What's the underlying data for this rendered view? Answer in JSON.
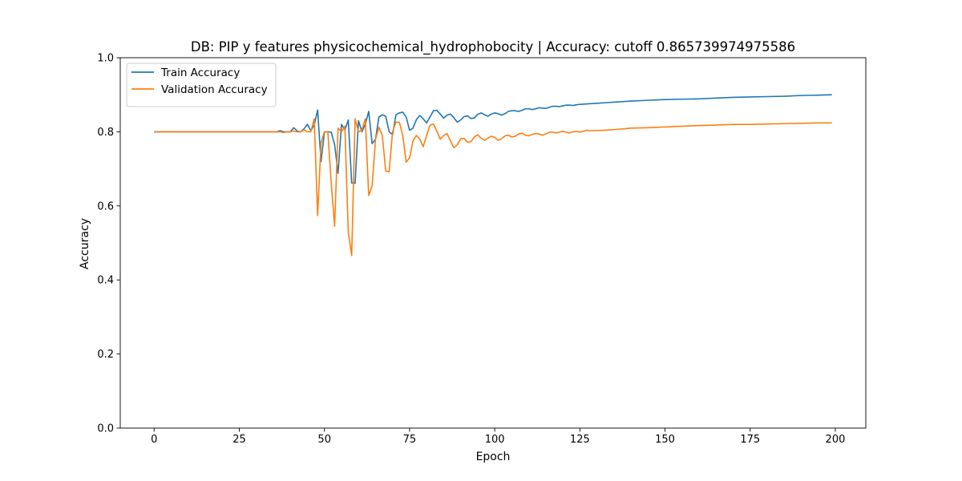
{
  "chart_data": {
    "type": "line",
    "title": "DB: PIP y features physicochemical_hydrophobocity | Accuracy: cutoff 0.865739974975586",
    "xlabel": "Epoch",
    "ylabel": "Accuracy",
    "xlim": [
      -9.95,
      208.95
    ],
    "ylim": [
      0.0,
      1.0
    ],
    "xticks": [
      0,
      25,
      50,
      75,
      100,
      125,
      150,
      175,
      200
    ],
    "yticks": [
      0.0,
      0.2,
      0.4,
      0.6,
      0.8,
      1.0
    ],
    "xtick_labels": [
      "0",
      "25",
      "50",
      "75",
      "100",
      "125",
      "150",
      "175",
      "200"
    ],
    "ytick_labels": [
      "0.0",
      "0.2",
      "0.4",
      "0.6",
      "0.8",
      "1.0"
    ],
    "grid": false,
    "legend_position": "upper-left",
    "series": [
      {
        "name": "Train Accuracy",
        "color": "#1f77b4",
        "points": [
          [
            0,
            0.8
          ],
          [
            36,
            0.8
          ],
          [
            37,
            0.803
          ],
          [
            38,
            0.8
          ],
          [
            40,
            0.8
          ],
          [
            41,
            0.811
          ],
          [
            42,
            0.802
          ],
          [
            43,
            0.8
          ],
          [
            44,
            0.808
          ],
          [
            45,
            0.82
          ],
          [
            46,
            0.803
          ],
          [
            47,
            0.818
          ],
          [
            48,
            0.859
          ],
          [
            49,
            0.72
          ],
          [
            50,
            0.8
          ],
          [
            51,
            0.8
          ],
          [
            52,
            0.799
          ],
          [
            53,
            0.765
          ],
          [
            54,
            0.688
          ],
          [
            55,
            0.82
          ],
          [
            56,
            0.805
          ],
          [
            57,
            0.832
          ],
          [
            58,
            0.662
          ],
          [
            59,
            0.661
          ],
          [
            60,
            0.83
          ],
          [
            61,
            0.8
          ],
          [
            62,
            0.82
          ],
          [
            63,
            0.855
          ],
          [
            64,
            0.768
          ],
          [
            65,
            0.78
          ],
          [
            66,
            0.84
          ],
          [
            67,
            0.846
          ],
          [
            68,
            0.842
          ],
          [
            69,
            0.8
          ],
          [
            70,
            0.792
          ],
          [
            71,
            0.846
          ],
          [
            72,
            0.851
          ],
          [
            73,
            0.853
          ],
          [
            74,
            0.84
          ],
          [
            75,
            0.804
          ],
          [
            76,
            0.81
          ],
          [
            77,
            0.833
          ],
          [
            78,
            0.844
          ],
          [
            79,
            0.835
          ],
          [
            80,
            0.824
          ],
          [
            81,
            0.84
          ],
          [
            82,
            0.857
          ],
          [
            83,
            0.858
          ],
          [
            84,
            0.848
          ],
          [
            85,
            0.837
          ],
          [
            86,
            0.845
          ],
          [
            87,
            0.848
          ],
          [
            88,
            0.838
          ],
          [
            89,
            0.826
          ],
          [
            90,
            0.832
          ],
          [
            91,
            0.841
          ],
          [
            92,
            0.843
          ],
          [
            93,
            0.836
          ],
          [
            94,
            0.837
          ],
          [
            95,
            0.847
          ],
          [
            96,
            0.851
          ],
          [
            97,
            0.846
          ],
          [
            98,
            0.842
          ],
          [
            99,
            0.848
          ],
          [
            100,
            0.851
          ],
          [
            101,
            0.849
          ],
          [
            102,
            0.845
          ],
          [
            103,
            0.849
          ],
          [
            104,
            0.855
          ],
          [
            105,
            0.857
          ],
          [
            106,
            0.857
          ],
          [
            107,
            0.855
          ],
          [
            108,
            0.858
          ],
          [
            109,
            0.862
          ],
          [
            110,
            0.862
          ],
          [
            111,
            0.86
          ],
          [
            112,
            0.862
          ],
          [
            113,
            0.865
          ],
          [
            114,
            0.864
          ],
          [
            115,
            0.863
          ],
          [
            116,
            0.866
          ],
          [
            117,
            0.869
          ],
          [
            118,
            0.869
          ],
          [
            119,
            0.868
          ],
          [
            120,
            0.87
          ],
          [
            121,
            0.872
          ],
          [
            122,
            0.872
          ],
          [
            123,
            0.871
          ],
          [
            124,
            0.873
          ],
          [
            125,
            0.874
          ],
          [
            130,
            0.877
          ],
          [
            135,
            0.88
          ],
          [
            140,
            0.883
          ],
          [
            145,
            0.885
          ],
          [
            150,
            0.887
          ],
          [
            155,
            0.888
          ],
          [
            160,
            0.889
          ],
          [
            165,
            0.891
          ],
          [
            170,
            0.893
          ],
          [
            175,
            0.894
          ],
          [
            180,
            0.895
          ],
          [
            185,
            0.896
          ],
          [
            190,
            0.898
          ],
          [
            195,
            0.899
          ],
          [
            199,
            0.9
          ]
        ]
      },
      {
        "name": "Validation Accuracy",
        "color": "#ff7f0e",
        "points": [
          [
            0,
            0.8
          ],
          [
            37,
            0.8
          ],
          [
            38,
            0.798
          ],
          [
            39,
            0.8
          ],
          [
            40,
            0.8
          ],
          [
            41,
            0.802
          ],
          [
            42,
            0.8
          ],
          [
            43,
            0.8
          ],
          [
            44,
            0.805
          ],
          [
            45,
            0.8
          ],
          [
            46,
            0.8
          ],
          [
            47,
            0.835
          ],
          [
            48,
            0.574
          ],
          [
            49,
            0.77
          ],
          [
            50,
            0.8
          ],
          [
            51,
            0.8
          ],
          [
            52,
            0.66
          ],
          [
            53,
            0.545
          ],
          [
            54,
            0.81
          ],
          [
            55,
            0.8
          ],
          [
            56,
            0.815
          ],
          [
            57,
            0.53
          ],
          [
            58,
            0.466
          ],
          [
            59,
            0.835
          ],
          [
            60,
            0.8
          ],
          [
            61,
            0.805
          ],
          [
            62,
            0.835
          ],
          [
            63,
            0.628
          ],
          [
            64,
            0.654
          ],
          [
            65,
            0.78
          ],
          [
            66,
            0.812
          ],
          [
            67,
            0.79
          ],
          [
            68,
            0.694
          ],
          [
            69,
            0.692
          ],
          [
            70,
            0.8
          ],
          [
            71,
            0.826
          ],
          [
            72,
            0.826
          ],
          [
            73,
            0.79
          ],
          [
            74,
            0.718
          ],
          [
            75,
            0.73
          ],
          [
            76,
            0.776
          ],
          [
            77,
            0.79
          ],
          [
            78,
            0.78
          ],
          [
            79,
            0.76
          ],
          [
            80,
            0.79
          ],
          [
            81,
            0.818
          ],
          [
            82,
            0.821
          ],
          [
            83,
            0.802
          ],
          [
            84,
            0.78
          ],
          [
            85,
            0.79
          ],
          [
            86,
            0.795
          ],
          [
            87,
            0.776
          ],
          [
            88,
            0.757
          ],
          [
            89,
            0.765
          ],
          [
            90,
            0.781
          ],
          [
            91,
            0.782
          ],
          [
            92,
            0.772
          ],
          [
            93,
            0.773
          ],
          [
            94,
            0.786
          ],
          [
            95,
            0.792
          ],
          [
            96,
            0.783
          ],
          [
            97,
            0.777
          ],
          [
            98,
            0.783
          ],
          [
            99,
            0.788
          ],
          [
            100,
            0.785
          ],
          [
            101,
            0.777
          ],
          [
            102,
            0.781
          ],
          [
            103,
            0.789
          ],
          [
            104,
            0.791
          ],
          [
            105,
            0.786
          ],
          [
            106,
            0.788
          ],
          [
            107,
            0.794
          ],
          [
            108,
            0.796
          ],
          [
            109,
            0.791
          ],
          [
            110,
            0.789
          ],
          [
            111,
            0.793
          ],
          [
            112,
            0.795
          ],
          [
            113,
            0.794
          ],
          [
            114,
            0.791
          ],
          [
            115,
            0.794
          ],
          [
            116,
            0.799
          ],
          [
            117,
            0.799
          ],
          [
            118,
            0.797
          ],
          [
            119,
            0.799
          ],
          [
            120,
            0.801
          ],
          [
            121,
            0.799
          ],
          [
            122,
            0.797
          ],
          [
            123,
            0.8
          ],
          [
            124,
            0.801
          ],
          [
            125,
            0.799
          ],
          [
            126,
            0.801
          ],
          [
            127,
            0.804
          ],
          [
            128,
            0.803
          ],
          [
            130,
            0.803
          ],
          [
            135,
            0.806
          ],
          [
            138,
            0.808
          ],
          [
            140,
            0.81
          ],
          [
            145,
            0.811
          ],
          [
            150,
            0.813
          ],
          [
            155,
            0.815
          ],
          [
            160,
            0.817
          ],
          [
            165,
            0.818
          ],
          [
            170,
            0.82
          ],
          [
            175,
            0.82
          ],
          [
            180,
            0.821
          ],
          [
            185,
            0.822
          ],
          [
            190,
            0.823
          ],
          [
            195,
            0.824
          ],
          [
            199,
            0.824
          ]
        ]
      }
    ]
  }
}
